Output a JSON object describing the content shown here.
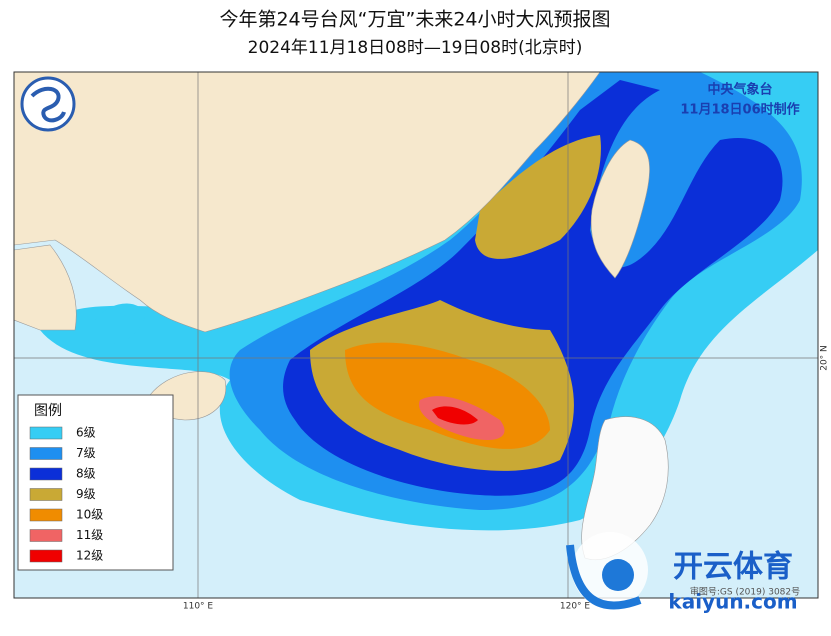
{
  "header": {
    "title": "今年第24号台风“万宜”未来24小时大风预报图",
    "subtitle": "2024年11月18日08时—19日08时(北京时)"
  },
  "agency": {
    "name": "中央气象台",
    "issued": "11月18日06时制作"
  },
  "legend": {
    "title": "图例",
    "items": [
      {
        "label": "6级",
        "color": "#36cdf4"
      },
      {
        "label": "7级",
        "color": "#1e8ff0"
      },
      {
        "label": "8级",
        "color": "#0b2fd8"
      },
      {
        "label": "9级",
        "color": "#c9a935"
      },
      {
        "label": "10级",
        "color": "#f08c00"
      },
      {
        "label": "11级",
        "color": "#f06464"
      },
      {
        "label": "12级",
        "color": "#f00000"
      }
    ]
  },
  "grid_labels": {
    "lon_110": "110° E",
    "lon_120": "120° E",
    "lat_20": "20° N"
  },
  "watermark": {
    "brand": "开云体育",
    "domain": "kaiyun.com",
    "approval": "审图号:GS (2019) 3082号"
  }
}
